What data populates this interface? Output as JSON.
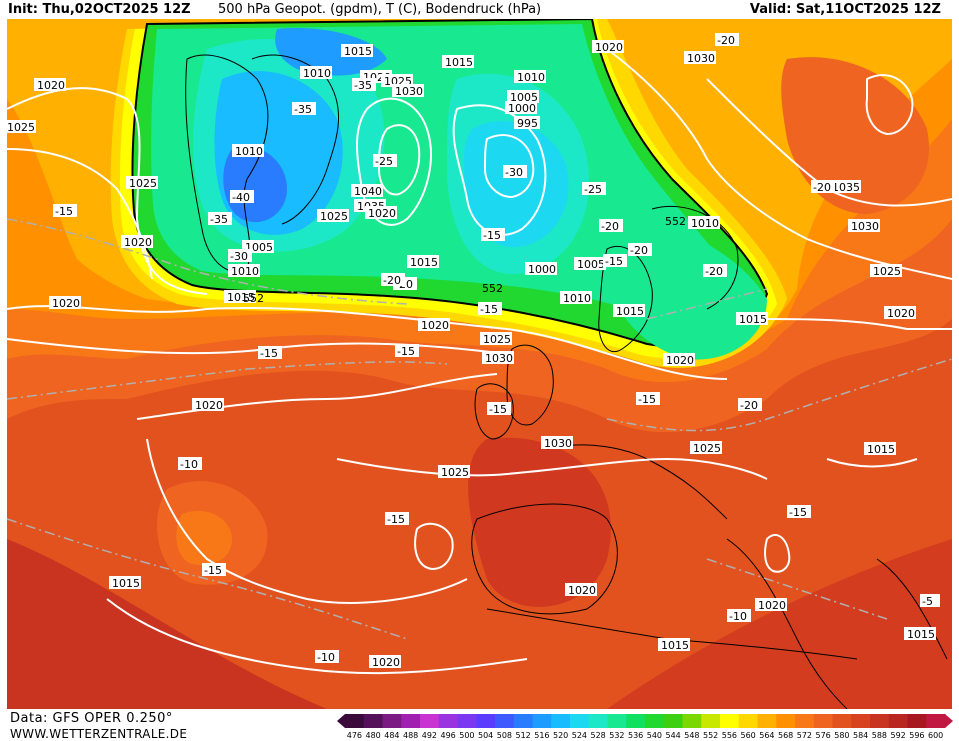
{
  "header": {
    "init": "Init: Thu,02OCT2025 12Z",
    "title": "500 hPa Geopot. (gpdm), T (C), Bodendruck (hPa)",
    "valid": "Valid: Sat,11OCT2025 12Z"
  },
  "footer": {
    "source": "Data: GFS OPER 0.250°",
    "site": "WWW.WETTERZENTRALE.DE"
  },
  "colorscale": {
    "values": [
      "476",
      "480",
      "484",
      "488",
      "492",
      "496",
      "500",
      "504",
      "508",
      "512",
      "516",
      "520",
      "524",
      "528",
      "532",
      "536",
      "540",
      "544",
      "548",
      "552",
      "556",
      "560",
      "564",
      "568",
      "572",
      "576",
      "580",
      "584",
      "588",
      "592",
      "596",
      "600"
    ],
    "colors": [
      "#3a0a3a",
      "#55105a",
      "#7a1a82",
      "#a020b0",
      "#c833d2",
      "#9a33e0",
      "#7a38f0",
      "#5a3cff",
      "#3c5aff",
      "#2a7cff",
      "#1f9cff",
      "#18bcff",
      "#1cd8f0",
      "#1ce8c8",
      "#18e890",
      "#10e060",
      "#20d830",
      "#3cd010",
      "#7ad800",
      "#c8e800",
      "#ffff00",
      "#ffd800",
      "#ffb000",
      "#ff9000",
      "#f87818",
      "#ee6420",
      "#e2521f",
      "#d8421f",
      "#c83420",
      "#b82820",
      "#a81820",
      "#c01840"
    ]
  },
  "isobars": [
    {
      "v": "1020",
      "c": "1020"
    },
    {
      "v": "1025",
      "c": "1025"
    },
    {
      "v": "1010",
      "c": "1010"
    },
    {
      "v": "1015",
      "c": "1015"
    },
    {
      "v": "1020",
      "c": "1020"
    },
    {
      "v": "1025",
      "c": "1025"
    },
    {
      "v": "1030",
      "c": "1030"
    },
    {
      "v": "1015",
      "c": "1015"
    },
    {
      "v": "1010",
      "c": "1010"
    },
    {
      "v": "1005",
      "c": "1005"
    },
    {
      "v": "1000",
      "c": "1000"
    },
    {
      "v": "995",
      "c": "995"
    },
    {
      "v": "1020",
      "c": "1020"
    },
    {
      "v": "1030",
      "c": "1030"
    },
    {
      "v": "1025",
      "c": "1025"
    },
    {
      "v": "1010",
      "c": "1010"
    },
    {
      "v": "1005",
      "c": "1005"
    },
    {
      "v": "1010",
      "c": "1010"
    },
    {
      "v": "1040",
      "c": "1040"
    },
    {
      "v": "1035",
      "c": "1035"
    },
    {
      "v": "1025",
      "c": "1025"
    },
    {
      "v": "1020",
      "c": "1020"
    },
    {
      "v": "1015",
      "c": "1015"
    },
    {
      "v": "1000",
      "c": "1000"
    },
    {
      "v": "1005",
      "c": "1005"
    },
    {
      "v": "1010",
      "c": "1010"
    },
    {
      "v": "1015",
      "c": "1015"
    },
    {
      "v": "1015",
      "c": "1015"
    },
    {
      "v": "1020",
      "c": "1020"
    },
    {
      "v": "1025",
      "c": "1025"
    },
    {
      "v": "1030",
      "c": "1030"
    },
    {
      "v": "1020",
      "c": "1020"
    },
    {
      "v": "1030",
      "c": "1030"
    },
    {
      "v": "1025",
      "c": "1025"
    },
    {
      "v": "1020",
      "c": "1020"
    },
    {
      "v": "1025",
      "c": "1025"
    },
    {
      "v": "1035",
      "c": "1035"
    },
    {
      "v": "1030",
      "c": "1030"
    },
    {
      "v": "1025",
      "c": "1025"
    },
    {
      "v": "1020",
      "c": "1020"
    },
    {
      "v": "1015",
      "c": "1015"
    },
    {
      "v": "1015",
      "c": "1015"
    },
    {
      "v": "1020",
      "c": "1020"
    },
    {
      "v": "1020",
      "c": "1020"
    },
    {
      "v": "1015",
      "c": "1015"
    },
    {
      "v": "1015",
      "c": "1015"
    },
    {
      "v": "1020",
      "c": "1020"
    },
    {
      "v": "1010",
      "c": "1010"
    },
    {
      "v": "1020",
      "c": "1020"
    },
    {
      "v": "1020",
      "c": "1020"
    },
    {
      "v": "1015",
      "c": "1015"
    }
  ],
  "temps": [
    "-35",
    "-40",
    "-35",
    "-30",
    "-35",
    "-30",
    "-25",
    "-20",
    "-25",
    "-20",
    "-20",
    "-20",
    "-20",
    "-15",
    "-15",
    "-15",
    "-15",
    "-15",
    "-15",
    "-10",
    "-15",
    "-15",
    "-15",
    "-10",
    "-10",
    "-20",
    "-20",
    "-15",
    "-5",
    "-20",
    "-15"
  ],
  "heights": [
    "552",
    "552",
    "552"
  ]
}
